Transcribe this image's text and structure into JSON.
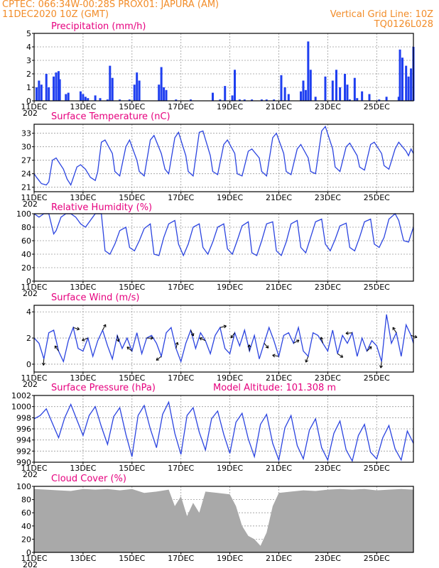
{
  "header": {
    "line1": "CPTEC:   066:34W-00:28S   PROX01: JAPURA (AM)",
    "line2": "11DEC2020  10Z (GMT)",
    "grid_note": "Vertical Grid Line: 10Z",
    "model_code": "TQ0126L028"
  },
  "colors": {
    "header": "#f28c28",
    "title": "#e6007e",
    "line": "#2b44e0",
    "bar": "#1f3ff0",
    "cloud": "#a9a9a9"
  },
  "x_ticks": [
    "11DEC",
    "13DEC",
    "15DEC",
    "17DEC",
    "19DEC",
    "21DEC",
    "23DEC",
    "25DEC"
  ],
  "year_fragment": "202",
  "chart_data": [
    {
      "type": "bar",
      "title": "Precipitation (mm/h)",
      "ylim": [
        0,
        5
      ],
      "yticks": [
        "0",
        "1",
        "2",
        "3",
        "4",
        "5"
      ],
      "grid": true,
      "x_unit": "days since 11DEC 00Z",
      "x": [
        0.1,
        0.2,
        0.3,
        0.5,
        0.6,
        0.8,
        0.9,
        1.0,
        1.05,
        1.3,
        1.4,
        1.9,
        2.0,
        2.1,
        2.2,
        2.5,
        2.7,
        3.0,
        3.1,
        3.2,
        3.5,
        3.9,
        4.1,
        4.2,
        4.3,
        5.1,
        5.2,
        5.3,
        5.4,
        5.8,
        6.4,
        7.3,
        7.6,
        7.8,
        8.1,
        8.2,
        8.4,
        8.6,
        8.9,
        9.3,
        9.5,
        9.8,
        10.1,
        10.25,
        10.4,
        10.9,
        11.0,
        11.1,
        11.2,
        11.3,
        11.5,
        11.9,
        12.2,
        12.35,
        12.5,
        12.7,
        12.8,
        12.9,
        13.1,
        13.2,
        13.4,
        13.7,
        14.1,
        14.4,
        14.9,
        14.95,
        15.05,
        15.2,
        15.3,
        15.4,
        15.5
      ],
      "values": [
        1.0,
        1.5,
        1.2,
        2.0,
        1.0,
        1.8,
        2.1,
        2.2,
        1.6,
        0.5,
        0.6,
        0.7,
        0.5,
        0.3,
        0.2,
        0.4,
        0.2,
        0.1,
        2.6,
        1.7,
        0.1,
        0.1,
        1.2,
        2.1,
        1.5,
        1.2,
        2.5,
        1.0,
        0.8,
        0.1,
        0.1,
        0.6,
        0.1,
        1.1,
        0.4,
        2.3,
        0.1,
        0.1,
        0.1,
        0.1,
        0.1,
        0.1,
        1.9,
        1.0,
        0.5,
        0.7,
        1.5,
        0.8,
        4.4,
        2.3,
        0.3,
        1.8,
        1.5,
        2.3,
        1.0,
        2.0,
        1.2,
        0.1,
        1.7,
        0.2,
        0.7,
        0.5,
        0.1,
        0.3,
        0.3,
        3.8,
        3.2,
        2.6,
        1.8,
        2.4,
        4.0
      ],
      "series_name": "",
      "labels": []
    },
    {
      "type": "line",
      "title": "Surface Temperature (nC)",
      "ylim": [
        20,
        35
      ],
      "yticks": [
        "21",
        "24",
        "27",
        "30",
        "33"
      ],
      "grid": true,
      "x": [
        0.0,
        0.1,
        0.2,
        0.3,
        0.5,
        0.6,
        0.75,
        0.9,
        1.2,
        1.35,
        1.5,
        1.75,
        1.9,
        2.1,
        2.3,
        2.5,
        2.6,
        2.75,
        2.9,
        3.2,
        3.3,
        3.5,
        3.75,
        3.9,
        4.2,
        4.3,
        4.5,
        4.75,
        4.9,
        5.2,
        5.35,
        5.5,
        5.75,
        5.9,
        6.2,
        6.3,
        6.5,
        6.75,
        6.9,
        7.2,
        7.3,
        7.5,
        7.75,
        7.9,
        8.2,
        8.3,
        8.5,
        8.75,
        8.9,
        9.2,
        9.3,
        9.5,
        9.75,
        9.9,
        10.2,
        10.3,
        10.5,
        10.75,
        10.9,
        11.2,
        11.3,
        11.5,
        11.75,
        11.9,
        12.2,
        12.3,
        12.5,
        12.75,
        12.9,
        13.2,
        13.3,
        13.5,
        13.75,
        13.9,
        14.2,
        14.3,
        14.5,
        14.75,
        14.9,
        15.2,
        15.3,
        15.4,
        15.5
      ],
      "values": [
        24.0,
        23.2,
        22.5,
        21.8,
        21.5,
        22.2,
        27.0,
        27.5,
        25.0,
        22.8,
        21.5,
        25.5,
        26.0,
        25.0,
        23.2,
        22.5,
        24.5,
        31.0,
        31.5,
        28.5,
        24.5,
        23.5,
        30.0,
        31.5,
        27.0,
        24.5,
        23.5,
        31.5,
        32.5,
        28.5,
        25.0,
        24.0,
        32.0,
        33.2,
        28.0,
        24.5,
        23.5,
        33.2,
        33.5,
        28.0,
        24.5,
        23.8,
        30.5,
        31.5,
        28.5,
        24.0,
        23.5,
        29.0,
        29.5,
        27.5,
        24.5,
        23.5,
        32.0,
        33.0,
        28.5,
        24.5,
        23.8,
        29.5,
        30.5,
        27.5,
        24.5,
        24.0,
        33.5,
        34.5,
        29.5,
        25.5,
        24.5,
        30.0,
        30.8,
        28.0,
        25.5,
        24.8,
        30.5,
        31.0,
        28.5,
        25.8,
        25.0,
        29.5,
        31.0,
        29.0,
        28.0,
        29.5,
        28.5
      ],
      "series_name": "",
      "labels": []
    },
    {
      "type": "line",
      "title": "Relative Humidity (%)",
      "ylim": [
        0,
        100
      ],
      "yticks": [
        "0",
        "20",
        "40",
        "60",
        "80",
        "100"
      ],
      "grid": true,
      "x": [
        0.0,
        0.2,
        0.4,
        0.6,
        0.8,
        0.9,
        1.1,
        1.3,
        1.5,
        1.7,
        1.9,
        2.1,
        2.3,
        2.5,
        2.75,
        2.9,
        3.1,
        3.3,
        3.5,
        3.75,
        3.9,
        4.1,
        4.3,
        4.5,
        4.75,
        4.9,
        5.1,
        5.3,
        5.5,
        5.75,
        5.9,
        6.1,
        6.3,
        6.5,
        6.75,
        6.9,
        7.1,
        7.3,
        7.5,
        7.75,
        7.9,
        8.1,
        8.3,
        8.5,
        8.75,
        8.9,
        9.1,
        9.3,
        9.5,
        9.75,
        9.9,
        10.1,
        10.3,
        10.5,
        10.75,
        10.9,
        11.1,
        11.3,
        11.5,
        11.75,
        11.9,
        12.1,
        12.3,
        12.5,
        12.75,
        12.9,
        13.1,
        13.3,
        13.5,
        13.75,
        13.9,
        14.1,
        14.3,
        14.5,
        14.75,
        14.9,
        15.1,
        15.3,
        15.5
      ],
      "values": [
        100,
        95,
        100,
        100,
        70,
        75,
        95,
        100,
        100,
        95,
        85,
        80,
        90,
        100,
        100,
        45,
        40,
        55,
        75,
        80,
        50,
        45,
        60,
        78,
        85,
        40,
        38,
        65,
        85,
        90,
        55,
        38,
        55,
        80,
        85,
        50,
        40,
        58,
        80,
        85,
        48,
        40,
        60,
        82,
        88,
        42,
        38,
        60,
        85,
        88,
        45,
        38,
        58,
        85,
        90,
        50,
        42,
        65,
        88,
        92,
        55,
        45,
        62,
        82,
        86,
        50,
        45,
        65,
        88,
        92,
        55,
        50,
        65,
        92,
        100,
        90,
        60,
        58,
        80
      ],
      "series_name": "",
      "labels": []
    },
    {
      "type": "line",
      "title": "Surface Wind (m/s)",
      "ylim": [
        -0.6,
        4.5
      ],
      "yticks": [
        "0",
        "2",
        "4"
      ],
      "grid": true,
      "x": [
        0.0,
        0.2,
        0.4,
        0.6,
        0.8,
        1.0,
        1.2,
        1.4,
        1.6,
        1.8,
        2.0,
        2.2,
        2.4,
        2.6,
        2.8,
        3.0,
        3.2,
        3.4,
        3.6,
        3.8,
        4.0,
        4.2,
        4.4,
        4.6,
        4.8,
        5.0,
        5.2,
        5.4,
        5.6,
        5.8,
        6.0,
        6.2,
        6.4,
        6.6,
        6.8,
        7.0,
        7.2,
        7.4,
        7.6,
        7.8,
        8.0,
        8.2,
        8.4,
        8.6,
        8.8,
        9.0,
        9.2,
        9.4,
        9.6,
        9.8,
        10.0,
        10.2,
        10.4,
        10.6,
        10.8,
        11.0,
        11.2,
        11.4,
        11.6,
        11.8,
        12.0,
        12.2,
        12.4,
        12.6,
        12.8,
        13.0,
        13.2,
        13.4,
        13.6,
        13.8,
        14.0,
        14.2,
        14.4,
        14.6,
        14.8,
        15.0,
        15.2,
        15.4,
        15.5
      ],
      "values": [
        2.0,
        1.6,
        0.4,
        2.4,
        2.6,
        1.0,
        0.2,
        1.8,
        2.8,
        1.2,
        1.0,
        2.0,
        0.6,
        1.8,
        2.6,
        1.4,
        0.4,
        2.2,
        1.2,
        2.0,
        1.0,
        2.4,
        0.8,
        2.0,
        2.2,
        1.6,
        0.6,
        2.4,
        2.8,
        1.2,
        0.2,
        1.6,
        2.6,
        1.2,
        2.4,
        1.8,
        0.8,
        2.2,
        2.8,
        1.2,
        0.8,
        2.4,
        1.4,
        2.6,
        1.0,
        2.2,
        0.4,
        1.6,
        2.8,
        1.8,
        0.6,
        2.2,
        2.4,
        1.6,
        2.8,
        1.0,
        0.6,
        2.4,
        2.2,
        1.6,
        1.0,
        2.6,
        0.8,
        2.2,
        1.6,
        2.4,
        0.6,
        2.0,
        1.0,
        1.8,
        1.4,
        0.2,
        3.8,
        1.6,
        2.4,
        0.6,
        3.0,
        2.2,
        1.6
      ],
      "series_name": "",
      "labels": []
    },
    {
      "type": "line",
      "title": "Surface Pressure (hPa)",
      "ylim": [
        990,
        1002
      ],
      "yticks": [
        "990",
        "992",
        "994",
        "996",
        "998",
        "1000",
        "1002"
      ],
      "grid": true,
      "x": [
        0.0,
        0.25,
        0.5,
        0.75,
        1.0,
        1.25,
        1.5,
        1.75,
        2.0,
        2.25,
        2.5,
        2.75,
        3.0,
        3.25,
        3.5,
        3.75,
        4.0,
        4.25,
        4.5,
        4.75,
        5.0,
        5.25,
        5.5,
        5.75,
        6.0,
        6.25,
        6.5,
        6.75,
        7.0,
        7.25,
        7.5,
        7.75,
        8.0,
        8.25,
        8.5,
        8.75,
        9.0,
        9.25,
        9.5,
        9.75,
        10.0,
        10.25,
        10.5,
        10.75,
        11.0,
        11.25,
        11.5,
        11.75,
        12.0,
        12.25,
        12.5,
        12.75,
        13.0,
        13.25,
        13.5,
        13.75,
        14.0,
        14.25,
        14.5,
        14.75,
        15.0,
        15.25,
        15.5
      ],
      "values": [
        997.8,
        998.4,
        999.6,
        997.0,
        994.4,
        998.0,
        1000.4,
        997.6,
        994.8,
        998.4,
        1000.0,
        996.4,
        993.2,
        998.2,
        999.8,
        995.0,
        991.0,
        998.4,
        1000.2,
        996.0,
        992.6,
        998.6,
        1000.8,
        995.2,
        991.4,
        998.4,
        999.8,
        995.4,
        992.2,
        997.8,
        999.2,
        995.0,
        991.6,
        997.2,
        998.8,
        994.2,
        991.0,
        996.8,
        998.6,
        993.4,
        990.4,
        996.2,
        998.4,
        993.0,
        990.6,
        995.8,
        997.8,
        992.6,
        990.4,
        995.2,
        997.4,
        992.2,
        990.2,
        994.8,
        996.8,
        991.8,
        990.6,
        994.4,
        996.6,
        992.4,
        990.4,
        995.6,
        993.4
      ],
      "series_name": "",
      "labels": [
        "Model Altitude: 101.308 m"
      ]
    },
    {
      "type": "area",
      "title": "Cloud Cover (%)",
      "ylim": [
        0,
        100
      ],
      "yticks": [
        "0",
        "20",
        "40",
        "60",
        "80",
        "100"
      ],
      "grid": true,
      "x": [
        0.0,
        0.5,
        1.0,
        1.5,
        2.0,
        2.5,
        3.0,
        3.5,
        4.0,
        4.5,
        5.0,
        5.5,
        5.75,
        6.0,
        6.25,
        6.5,
        6.75,
        7.0,
        7.5,
        8.0,
        8.25,
        8.5,
        8.75,
        9.0,
        9.25,
        9.5,
        9.75,
        10.0,
        10.5,
        11.0,
        11.5,
        12.0,
        12.5,
        13.0,
        13.5,
        14.0,
        14.5,
        15.0,
        15.5
      ],
      "values": [
        96,
        95,
        94,
        93,
        96,
        95,
        96,
        94,
        96,
        90,
        92,
        95,
        70,
        85,
        55,
        75,
        60,
        92,
        90,
        88,
        70,
        40,
        25,
        20,
        10,
        30,
        70,
        90,
        92,
        94,
        93,
        95,
        96,
        95,
        96,
        94,
        95,
        96,
        95
      ],
      "series_name": "",
      "labels": []
    }
  ]
}
